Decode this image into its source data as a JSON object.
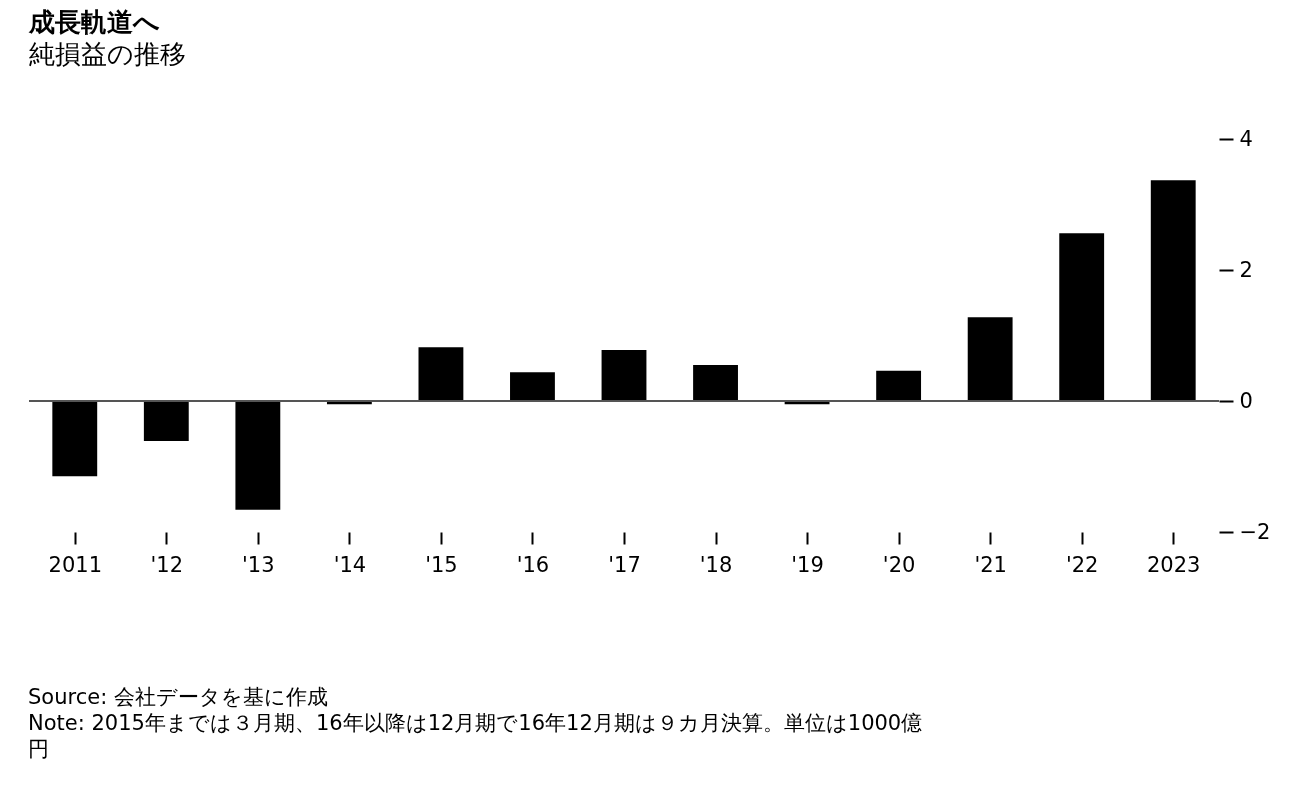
{
  "chart_data": {
    "type": "bar",
    "title": "成長軌道へ",
    "subtitle": "純損益の推移",
    "categories": [
      "2011",
      "'12",
      "'13",
      "'14",
      "'15",
      "'16",
      "'17",
      "'18",
      "'19",
      "'20",
      "'21",
      "'22",
      "2023"
    ],
    "values": [
      -1.15,
      -0.61,
      -1.66,
      -0.05,
      0.82,
      0.44,
      0.78,
      0.55,
      -0.05,
      0.46,
      1.28,
      2.56,
      3.37
    ],
    "color": "#000000",
    "ylim": [
      -2,
      4
    ],
    "yticks": [
      -2,
      0,
      2,
      4
    ],
    "grid": false,
    "ref_lines": [
      {
        "axis": "y",
        "value": 0
      }
    ],
    "annotations": [
      "Source: 会社データを基に作成",
      "Note: 2015年までは３月期、16年以降は12月期で16年12月期は９カ月決算。単位は1000億円"
    ]
  }
}
